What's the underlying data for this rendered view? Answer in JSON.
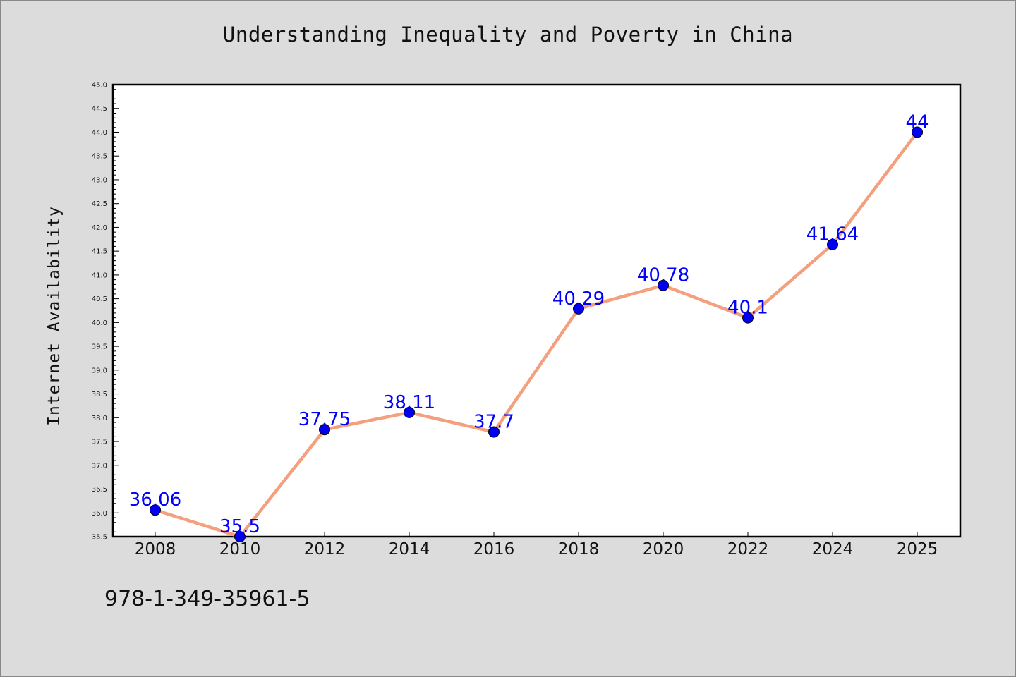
{
  "title": "Understanding Inequality and Poverty in China",
  "footer_text": "978-1-349-35961-5",
  "colors": {
    "line": "#f4a07e",
    "marker": "#0000ee",
    "data_label": "#0000ff",
    "background": "#dcdcdc",
    "plot_background": "#ffffff"
  },
  "chart_data": {
    "type": "line",
    "title": "Understanding Inequality and Poverty in China",
    "xlabel": "",
    "ylabel": "Internet Availability",
    "categories": [
      "2008",
      "2010",
      "2012",
      "2014",
      "2016",
      "2018",
      "2020",
      "2022",
      "2024",
      "2025"
    ],
    "series": [
      {
        "values": [
          36.06,
          35.5,
          37.75,
          38.11,
          37.7,
          40.29,
          40.78,
          40.1,
          41.64,
          44
        ]
      }
    ],
    "data_labels": [
      "36.06",
      "35.5",
      "37.75",
      "38.11",
      "37.7",
      "40.29",
      "40.78",
      "40.1",
      "41.64",
      "44"
    ],
    "ylim": [
      35.5,
      45.0
    ],
    "yticks": [
      "35.5",
      "36.0",
      "36.5",
      "37.0",
      "37.5",
      "38.0",
      "38.5",
      "39.0",
      "39.5",
      "40.0",
      "40.5",
      "41.0",
      "41.5",
      "42.0",
      "42.5",
      "43.0",
      "43.5",
      "44.0",
      "44.5",
      "45.0"
    ],
    "grid": false,
    "legend": "none"
  }
}
